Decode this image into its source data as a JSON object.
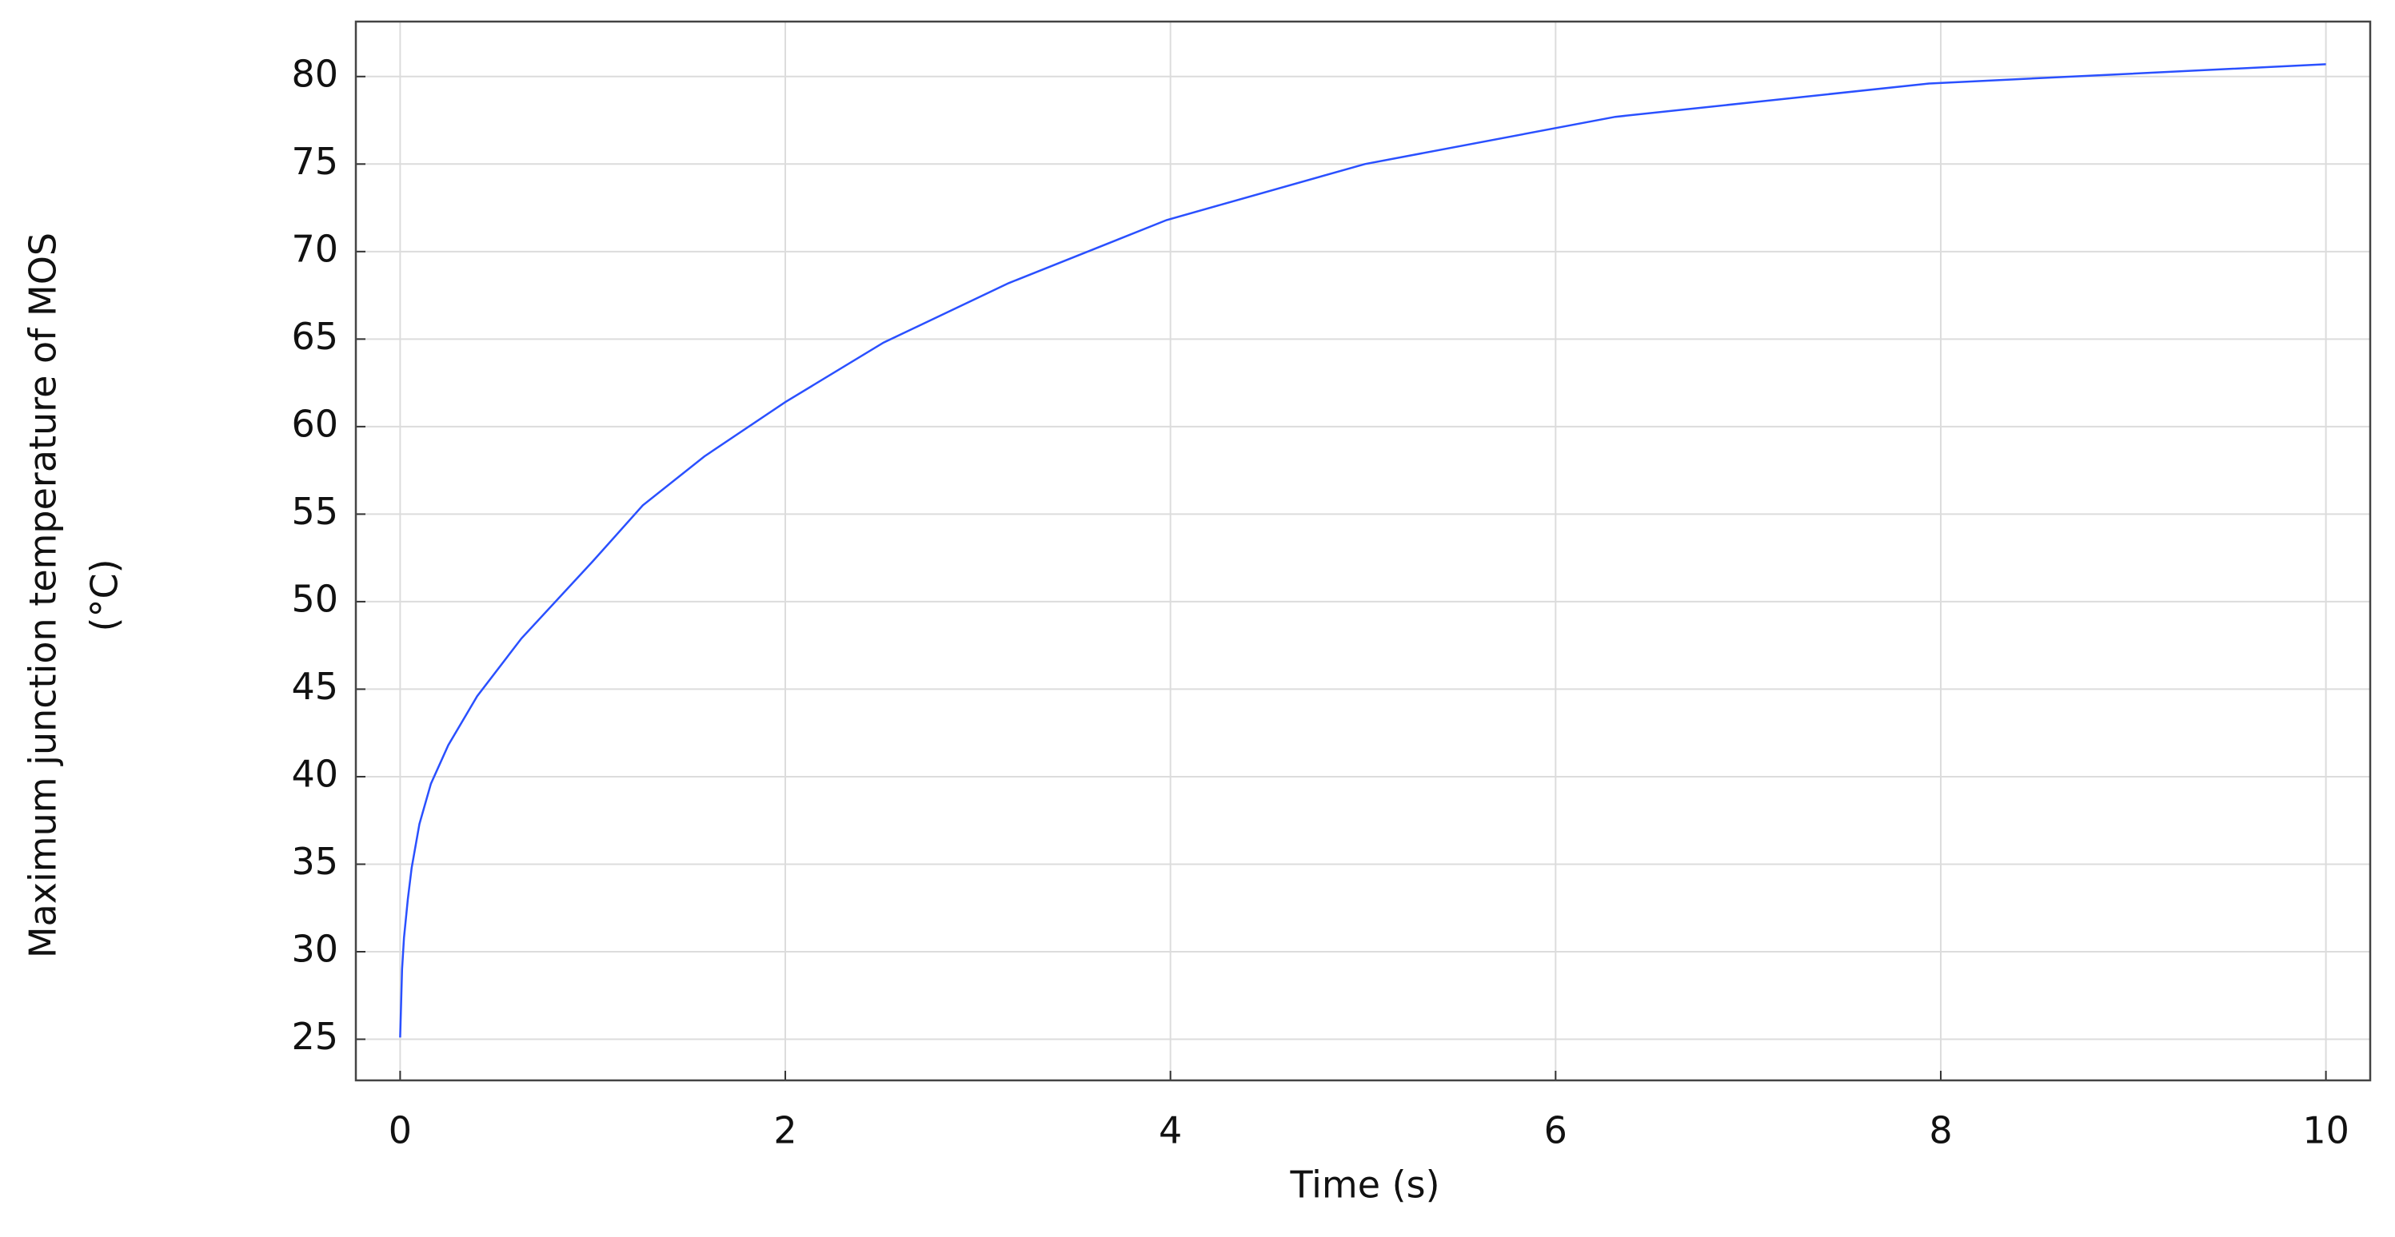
{
  "chart_data": {
    "type": "line",
    "xlabel": "Time (s)",
    "ylabel": [
      "Maximum junction temperature of MOS",
      "(°C)"
    ],
    "x": [
      0,
      0.01,
      0.02,
      0.04,
      0.06,
      0.1,
      0.16,
      0.25,
      0.4,
      0.63,
      1,
      1.26,
      1.58,
      2,
      2.51,
      3.16,
      3.98,
      5.01,
      6.31,
      7.94,
      10
    ],
    "series": [
      {
        "name": "Maximum junction temperature of MOS",
        "color": "#2a50ff",
        "values": [
          25.1,
          29,
          30.8,
          33,
          34.8,
          37.3,
          39.6,
          41.8,
          44.6,
          47.9,
          52.3,
          55.5,
          58.3,
          61.4,
          64.8,
          68.2,
          71.8,
          75.0,
          77.7,
          79.6,
          80.7
        ]
      }
    ],
    "xlim": [
      -0.23,
      10.23
    ],
    "ylim": [
      22.65,
      83.14
    ],
    "xticks": [
      0,
      2,
      4,
      6,
      8,
      10
    ],
    "yticks": [
      25,
      30,
      35,
      40,
      45,
      50,
      55,
      60,
      65,
      70,
      75,
      80
    ],
    "grid": true
  }
}
